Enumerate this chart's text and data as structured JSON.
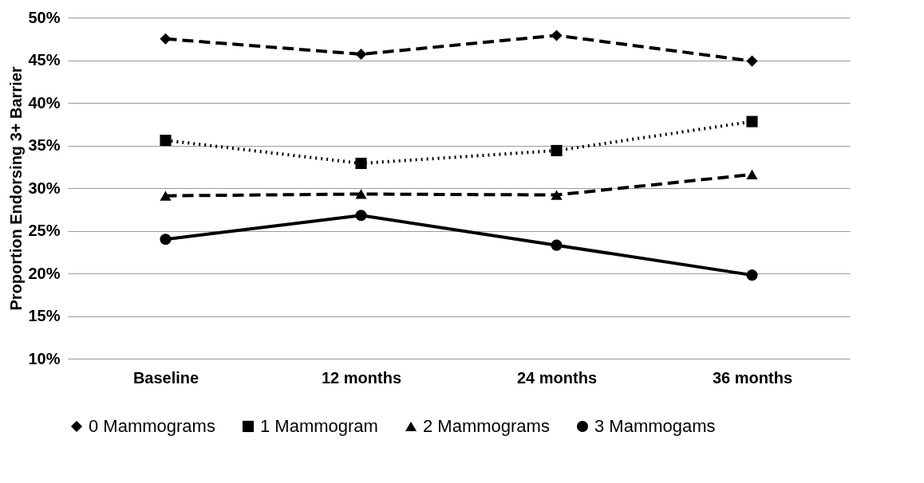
{
  "chart_data": {
    "type": "line",
    "ylabel": "Proportion Endorsing 3+ Barrier",
    "categories": [
      "Baseline",
      "12 months",
      "24 months",
      "36 months"
    ],
    "series": [
      {
        "name": "0 Mammograms",
        "color": "#000000",
        "marker": "diamond",
        "line_style": "dashed",
        "values": [
          47.5,
          45.7,
          47.9,
          44.9
        ]
      },
      {
        "name": "1 Mammogram",
        "color": "#000000",
        "marker": "square",
        "line_style": "dotted",
        "values": [
          35.6,
          32.9,
          34.4,
          37.8
        ]
      },
      {
        "name": "2 Mammograms",
        "color": "#000000",
        "marker": "triangle",
        "line_style": "dashed",
        "values": [
          29.1,
          29.3,
          29.2,
          31.6
        ]
      },
      {
        "name": "3 Mammogams",
        "color": "#000000",
        "marker": "circle",
        "line_style": "solid",
        "values": [
          24.0,
          26.8,
          23.3,
          19.8
        ]
      }
    ],
    "ylim": [
      10,
      50
    ],
    "yticks": [
      {
        "value": 10,
        "label": "10%"
      },
      {
        "value": 15,
        "label": "15%"
      },
      {
        "value": 20,
        "label": "20%"
      },
      {
        "value": 25,
        "label": "25%"
      },
      {
        "value": 30,
        "label": "30%"
      },
      {
        "value": 35,
        "label": "35%"
      },
      {
        "value": 40,
        "label": "40%"
      },
      {
        "value": 45,
        "label": "45%"
      },
      {
        "value": 50,
        "label": "50%"
      }
    ],
    "grid": "y",
    "legend": "bottom"
  }
}
